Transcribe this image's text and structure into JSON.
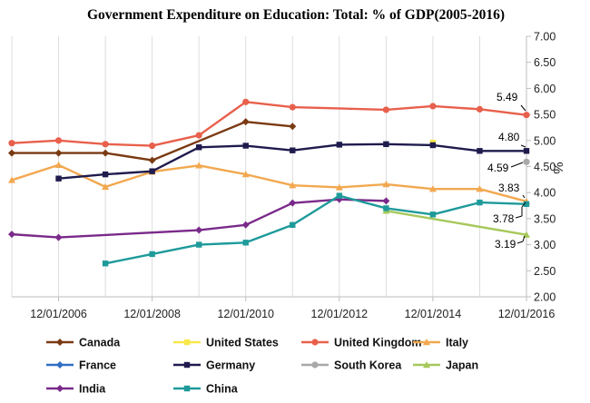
{
  "chart_data": {
    "type": "line",
    "title": "Government Expenditure on Education: Total: % of GDP(2005-2016)",
    "xlabel": "",
    "ylabel": "%",
    "ylim": [
      2.0,
      7.0
    ],
    "xlim": [
      2005,
      2016
    ],
    "yticks": [
      "2.00",
      "2.50",
      "3.00",
      "3.50",
      "4.00",
      "4.50",
      "5.00",
      "5.50",
      "6.00",
      "6.50",
      "7.00"
    ],
    "xticks": [
      {
        "x": 2006,
        "label": "12/01/2006"
      },
      {
        "x": 2008,
        "label": "12/01/2008"
      },
      {
        "x": 2010,
        "label": "12/01/2010"
      },
      {
        "x": 2012,
        "label": "12/01/2012"
      },
      {
        "x": 2014,
        "label": "12/01/2014"
      },
      {
        "x": 2016,
        "label": "12/01/2016"
      }
    ],
    "grid": "vertical",
    "series": [
      {
        "name": "Canada",
        "color": "#7a3a12",
        "marker": "diamond",
        "x": [
          2005,
          2006,
          2007,
          2008,
          2010,
          2011
        ],
        "values": [
          4.76,
          4.76,
          4.76,
          4.62,
          5.36,
          5.27
        ]
      },
      {
        "name": "United States",
        "color": "#f7e84c",
        "marker": "square",
        "x": [
          2014
        ],
        "values": [
          4.96
        ]
      },
      {
        "name": "United Kingdom",
        "color": "#e8604c",
        "marker": "circle",
        "x": [
          2005,
          2006,
          2007,
          2008,
          2009,
          2010,
          2011,
          2013,
          2014,
          2015,
          2016
        ],
        "values": [
          4.95,
          5.0,
          4.93,
          4.9,
          5.1,
          5.74,
          5.64,
          5.59,
          5.66,
          5.6,
          5.49
        ]
      },
      {
        "name": "Italy",
        "color": "#f2a850",
        "marker": "triangle",
        "x": [
          2005,
          2006,
          2007,
          2008,
          2009,
          2010,
          2011,
          2012,
          2013,
          2014,
          2015,
          2016
        ],
        "values": [
          4.24,
          4.53,
          4.11,
          4.4,
          4.52,
          4.35,
          4.14,
          4.1,
          4.16,
          4.07,
          4.07,
          3.83
        ]
      },
      {
        "name": "France",
        "color": "#2f6fc4",
        "marker": "diamond",
        "x": [],
        "values": []
      },
      {
        "name": "Germany",
        "color": "#1f1b4d",
        "marker": "square",
        "x": [
          2006,
          2007,
          2008,
          2009,
          2010,
          2011,
          2012,
          2013,
          2014,
          2015,
          2016
        ],
        "values": [
          4.27,
          4.35,
          4.41,
          4.87,
          4.9,
          4.81,
          4.92,
          4.93,
          4.91,
          4.8,
          4.8
        ]
      },
      {
        "name": "South Korea",
        "color": "#a8a8a8",
        "marker": "circle",
        "x": [
          2016
        ],
        "values": [
          4.59
        ]
      },
      {
        "name": "Japan",
        "color": "#a6c85a",
        "marker": "triangle",
        "x": [
          2013,
          2016
        ],
        "values": [
          3.65,
          3.19
        ]
      },
      {
        "name": "India",
        "color": "#7a2a8a",
        "marker": "diamond",
        "x": [
          2005,
          2006,
          2009,
          2010,
          2011,
          2012,
          2013
        ],
        "values": [
          3.2,
          3.14,
          3.28,
          3.38,
          3.8,
          3.87,
          3.84
        ]
      },
      {
        "name": "China",
        "color": "#1e9a9a",
        "marker": "square",
        "x": [
          2007,
          2008,
          2009,
          2010,
          2011,
          2012,
          2013,
          2014,
          2015,
          2016
        ],
        "values": [
          2.64,
          2.82,
          3.0,
          3.04,
          3.38,
          3.94,
          3.7,
          3.58,
          3.81,
          3.78
        ]
      }
    ],
    "annotations": [
      {
        "text": "5.49",
        "series": "United Kingdom"
      },
      {
        "text": "4.80",
        "series": "Germany"
      },
      {
        "text": "4.59",
        "series": "South Korea"
      },
      {
        "text": "3.83",
        "series": "Italy"
      },
      {
        "text": "3.78",
        "series": "China"
      },
      {
        "text": "3.19",
        "series": "Japan"
      }
    ],
    "legend_position": "bottom"
  }
}
